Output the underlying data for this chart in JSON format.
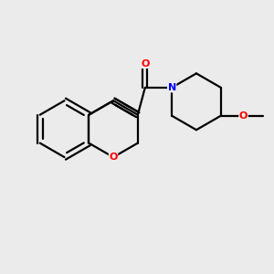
{
  "background_color": "#ebebeb",
  "bond_color": "#000000",
  "oxygen_color": "#ff0000",
  "nitrogen_color": "#0000ff",
  "line_width": 1.6,
  "figsize": [
    3.0,
    3.0
  ],
  "dpi": 100,
  "xlim": [
    0,
    10
  ],
  "ylim": [
    0,
    10
  ]
}
